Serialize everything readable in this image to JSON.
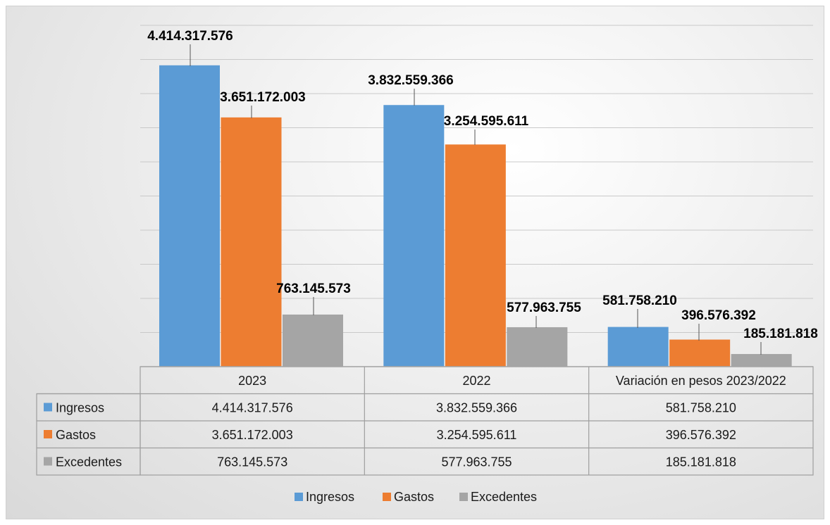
{
  "chart_data": {
    "type": "bar",
    "categories": [
      "2023",
      "2022",
      "Variación en pesos 2023/2022"
    ],
    "series": [
      {
        "name": "Ingresos",
        "color": "#5b9bd5",
        "values": [
          4414317576,
          3832559366,
          581758210
        ],
        "labels": [
          "4.414.317.576",
          "3.832.559.366",
          "581.758.210"
        ]
      },
      {
        "name": "Gastos",
        "color": "#ed7d31",
        "values": [
          3651172003,
          3254595611,
          396576392
        ],
        "labels": [
          "3.651.172.003",
          "3.254.595.611",
          "396.576.392"
        ]
      },
      {
        "name": "Excedentes",
        "color": "#a5a5a5",
        "values": [
          763145573,
          577963755,
          185181818
        ],
        "labels": [
          "763.145.573",
          "577.963.755",
          "185.181.818"
        ]
      }
    ],
    "ylim": [
      0,
      5000000000
    ],
    "gridlines": true,
    "data_table": true,
    "legend": "bottom"
  }
}
